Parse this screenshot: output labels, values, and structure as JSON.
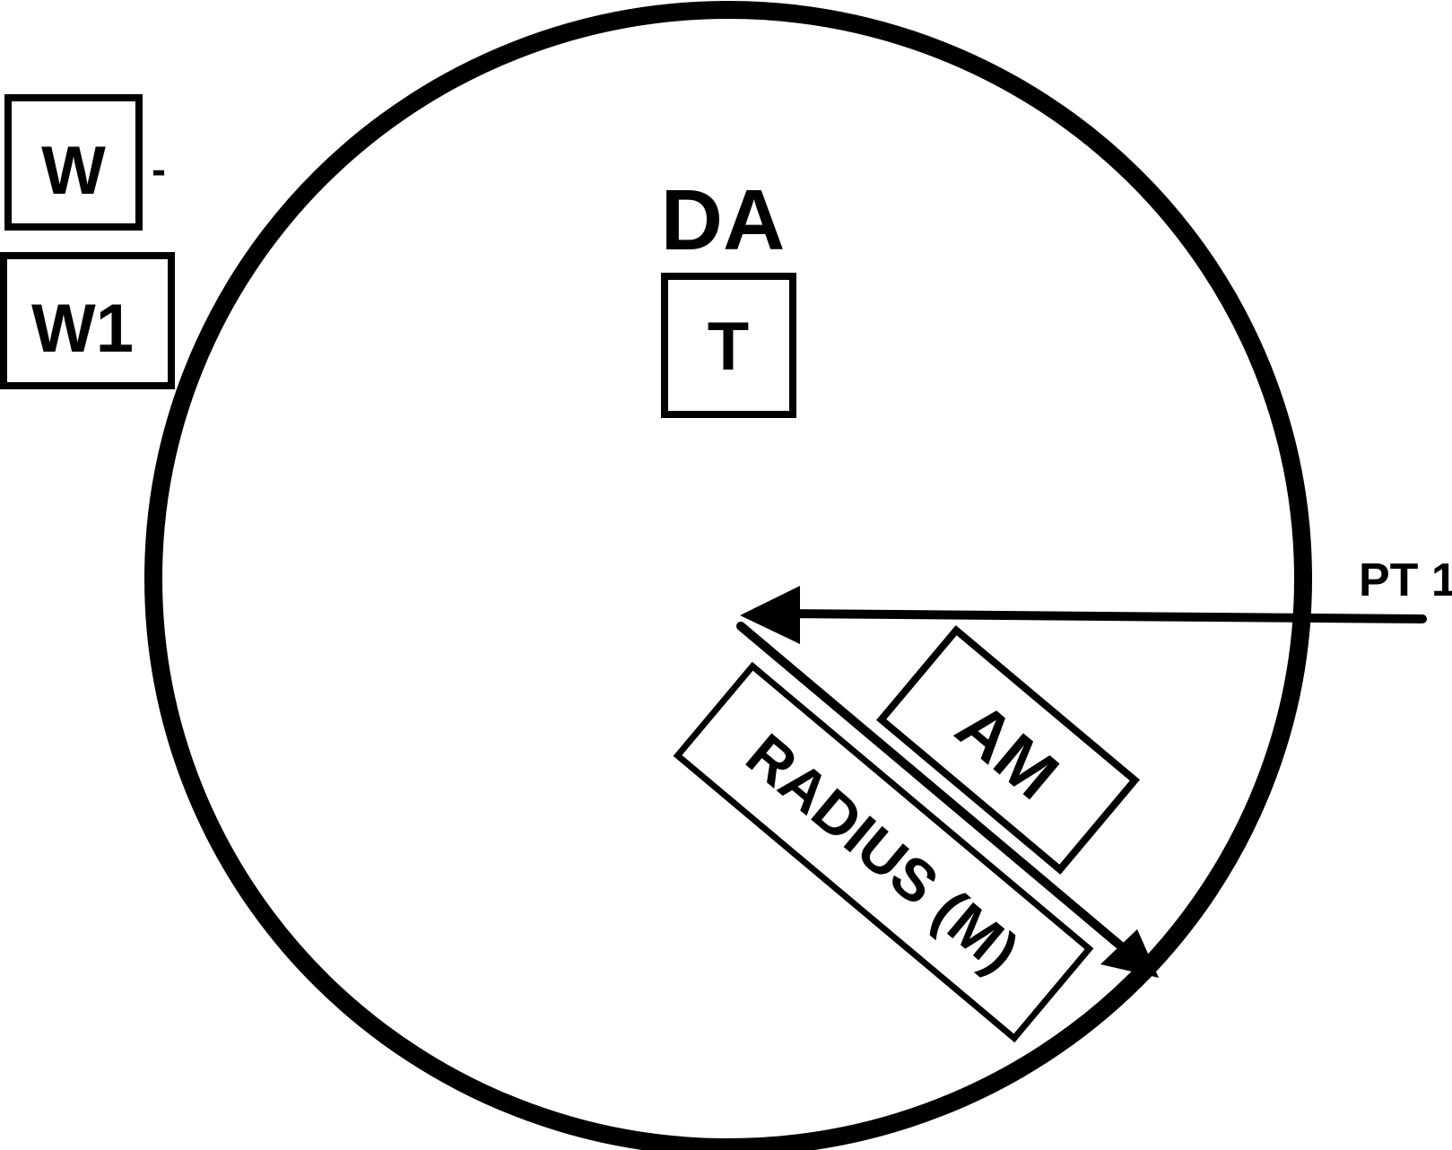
{
  "labels": {
    "w_minus": "W",
    "minus_sign": "-",
    "w1": "W1",
    "da": "DA",
    "t": "T",
    "pt1": "PT 1",
    "am": "AM",
    "radius": "RADIUS (M)"
  },
  "colors": {
    "stroke": "#000000",
    "background": "#ffffff"
  }
}
